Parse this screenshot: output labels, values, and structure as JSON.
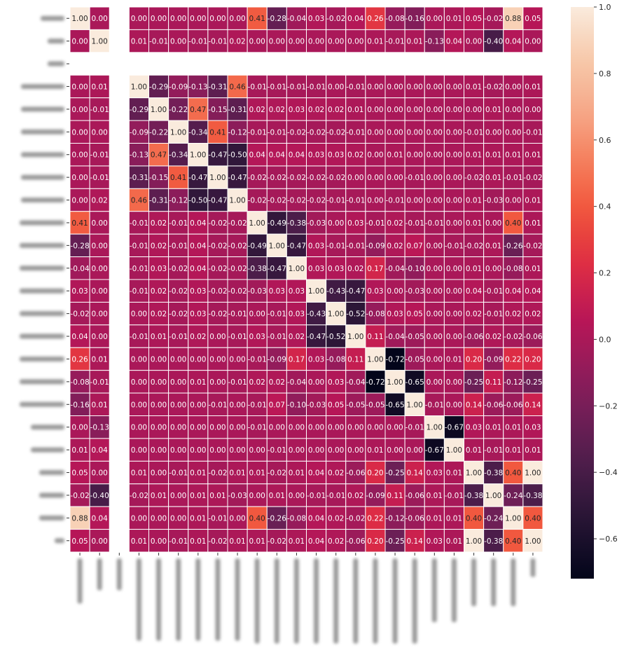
{
  "chart_data": {
    "type": "heatmap",
    "title": "",
    "row_labels_visible": false,
    "col_labels_visible": false,
    "n": 24,
    "value_range": [
      -0.72,
      1.0
    ],
    "colormap": "rocket",
    "colormap_stops": [
      "#03051a",
      "#221331",
      "#451c47",
      "#6b1f56",
      "#921c5b",
      "#b91657",
      "#dd2c45",
      "#f0513a",
      "#f57d5a",
      "#f6a98a",
      "#f7c9aa",
      "#faebdd"
    ],
    "colorbar_ticks": [
      "1.0",
      "0.8",
      "0.6",
      "0.4",
      "0.2",
      "0.0",
      "−0.2",
      "−0.4",
      "−0.6"
    ],
    "colorbar_tick_values": [
      1.0,
      0.8,
      0.6,
      0.4,
      0.2,
      0.0,
      -0.2,
      -0.4,
      -0.6
    ],
    "grid_line_color": "#ffffff",
    "values": [
      [
        1.0,
        -0.0,
        null,
        -0.0,
        -0.0,
        -0.0,
        0.0,
        0.0,
        -0.0,
        0.41,
        -0.28,
        -0.04,
        0.03,
        -0.02,
        0.04,
        0.26,
        -0.08,
        -0.16,
        0.0,
        0.01,
        0.05,
        -0.02,
        0.88,
        0.05
      ],
      [
        -0.0,
        1.0,
        null,
        0.01,
        -0.01,
        0.0,
        -0.01,
        -0.01,
        0.02,
        -0.0,
        0.0,
        0.0,
        -0.0,
        0.0,
        0.0,
        0.01,
        -0.01,
        0.01,
        -0.13,
        0.04,
        -0.0,
        -0.4,
        0.04,
        -0.0
      ],
      [
        null,
        null,
        null,
        null,
        null,
        null,
        null,
        null,
        null,
        null,
        null,
        null,
        null,
        null,
        null,
        null,
        null,
        null,
        null,
        null,
        null,
        null,
        null,
        null
      ],
      [
        -0.0,
        0.01,
        null,
        1.0,
        -0.29,
        -0.09,
        -0.13,
        -0.31,
        0.46,
        -0.01,
        -0.01,
        -0.01,
        -0.01,
        -0.0,
        -0.01,
        -0.0,
        -0.0,
        -0.0,
        0.0,
        0.0,
        0.01,
        -0.02,
        0.0,
        0.01
      ],
      [
        -0.0,
        -0.01,
        null,
        -0.29,
        1.0,
        -0.22,
        0.47,
        -0.15,
        -0.31,
        0.02,
        0.02,
        0.03,
        0.02,
        0.02,
        0.01,
        0.0,
        0.0,
        0.0,
        0.0,
        -0.0,
        -0.0,
        0.01,
        -0.0,
        -0.0
      ],
      [
        -0.0,
        0.0,
        null,
        -0.09,
        -0.22,
        1.0,
        -0.34,
        0.41,
        -0.12,
        -0.01,
        -0.01,
        -0.02,
        -0.02,
        -0.02,
        -0.01,
        -0.0,
        -0.0,
        -0.0,
        -0.0,
        -0.0,
        -0.01,
        0.0,
        -0.0,
        -0.01
      ],
      [
        0.0,
        -0.01,
        null,
        -0.13,
        0.47,
        -0.34,
        1.0,
        -0.47,
        -0.5,
        0.04,
        0.04,
        0.04,
        0.03,
        0.03,
        0.02,
        -0.0,
        0.01,
        0.0,
        0.0,
        -0.0,
        0.01,
        0.01,
        0.01,
        0.01
      ],
      [
        0.0,
        -0.01,
        null,
        -0.31,
        -0.15,
        0.41,
        -0.47,
        1.0,
        -0.47,
        -0.02,
        -0.02,
        -0.02,
        -0.02,
        -0.02,
        -0.0,
        -0.0,
        -0.0,
        -0.01,
        0.0,
        -0.0,
        -0.02,
        0.01,
        -0.01,
        -0.02
      ],
      [
        -0.0,
        0.02,
        null,
        0.46,
        -0.31,
        -0.12,
        -0.5,
        -0.47,
        1.0,
        -0.02,
        -0.02,
        -0.02,
        -0.02,
        -0.01,
        -0.01,
        0.0,
        -0.01,
        0.0,
        0.0,
        0.0,
        0.01,
        -0.03,
        0.0,
        0.01
      ],
      [
        0.41,
        -0.0,
        null,
        -0.01,
        0.02,
        -0.01,
        0.04,
        -0.02,
        -0.02,
        1.0,
        -0.49,
        -0.38,
        -0.03,
        0.0,
        0.03,
        -0.01,
        0.02,
        -0.01,
        -0.01,
        -0.0,
        0.01,
        -0.0,
        0.4,
        0.01
      ],
      [
        -0.28,
        0.0,
        null,
        -0.01,
        0.02,
        -0.01,
        0.04,
        -0.02,
        -0.02,
        -0.49,
        1.0,
        -0.47,
        0.03,
        -0.01,
        -0.01,
        -0.09,
        0.02,
        0.07,
        -0.0,
        -0.01,
        -0.02,
        0.01,
        -0.26,
        -0.02
      ],
      [
        -0.04,
        0.0,
        null,
        -0.01,
        0.03,
        -0.02,
        0.04,
        -0.02,
        -0.02,
        -0.38,
        -0.47,
        1.0,
        0.03,
        0.03,
        0.02,
        0.17,
        -0.04,
        -0.1,
        -0.0,
        -0.0,
        0.01,
        -0.0,
        -0.08,
        0.01
      ],
      [
        0.03,
        -0.0,
        null,
        -0.01,
        0.02,
        -0.02,
        0.03,
        -0.02,
        -0.02,
        -0.03,
        0.03,
        0.03,
        1.0,
        -0.43,
        -0.47,
        0.03,
        0.0,
        -0.03,
        0.0,
        -0.0,
        0.04,
        -0.01,
        0.04,
        0.04
      ],
      [
        -0.02,
        0.0,
        null,
        -0.0,
        0.02,
        -0.02,
        0.03,
        -0.02,
        -0.01,
        0.0,
        -0.01,
        0.03,
        -0.43,
        1.0,
        -0.52,
        -0.08,
        0.03,
        0.05,
        -0.0,
        -0.0,
        0.02,
        -0.01,
        0.02,
        0.02
      ],
      [
        0.04,
        0.0,
        null,
        -0.01,
        0.01,
        -0.01,
        0.02,
        -0.0,
        -0.01,
        0.03,
        -0.01,
        0.02,
        -0.47,
        -0.52,
        1.0,
        0.11,
        -0.04,
        -0.05,
        0.0,
        0.0,
        -0.06,
        0.02,
        -0.02,
        -0.06
      ],
      [
        0.26,
        0.01,
        null,
        -0.0,
        0.0,
        -0.0,
        -0.0,
        -0.0,
        0.0,
        -0.01,
        -0.09,
        0.17,
        0.03,
        -0.08,
        0.11,
        1.0,
        -0.72,
        -0.05,
        0.0,
        0.01,
        0.2,
        -0.09,
        0.22,
        0.2
      ],
      [
        -0.08,
        -0.01,
        null,
        -0.0,
        0.0,
        -0.0,
        0.01,
        -0.0,
        -0.01,
        0.02,
        0.02,
        -0.04,
        0.0,
        0.03,
        -0.04,
        -0.72,
        1.0,
        -0.65,
        0.0,
        -0.0,
        -0.25,
        0.11,
        -0.12,
        -0.25
      ],
      [
        -0.16,
        0.01,
        null,
        -0.0,
        0.0,
        -0.0,
        0.0,
        -0.01,
        0.0,
        -0.01,
        0.07,
        -0.1,
        -0.03,
        0.05,
        -0.05,
        -0.05,
        -0.65,
        1.0,
        -0.01,
        0.0,
        0.14,
        -0.06,
        -0.06,
        0.14
      ],
      [
        0.0,
        -0.13,
        null,
        0.0,
        0.0,
        -0.0,
        0.0,
        0.0,
        0.0,
        -0.01,
        -0.0,
        -0.0,
        0.0,
        -0.0,
        0.0,
        0.0,
        0.0,
        -0.01,
        1.0,
        -0.67,
        0.03,
        0.01,
        0.01,
        0.03
      ],
      [
        0.01,
        0.04,
        null,
        0.0,
        -0.0,
        -0.0,
        -0.0,
        -0.0,
        0.0,
        -0.0,
        -0.01,
        -0.0,
        -0.0,
        -0.0,
        0.0,
        0.01,
        -0.0,
        0.0,
        -0.67,
        1.0,
        0.01,
        -0.01,
        0.01,
        0.01
      ],
      [
        0.05,
        -0.0,
        null,
        0.01,
        -0.0,
        -0.01,
        0.01,
        -0.02,
        0.01,
        0.01,
        -0.02,
        0.01,
        0.04,
        0.02,
        -0.06,
        0.2,
        -0.25,
        0.14,
        0.03,
        0.01,
        1.0,
        -0.38,
        0.4,
        1.0
      ],
      [
        -0.02,
        -0.4,
        null,
        -0.02,
        0.01,
        0.0,
        0.01,
        0.01,
        -0.03,
        -0.0,
        0.01,
        -0.0,
        -0.01,
        -0.01,
        0.02,
        -0.09,
        0.11,
        -0.06,
        0.01,
        -0.01,
        -0.38,
        1.0,
        -0.24,
        -0.38
      ],
      [
        0.88,
        0.04,
        null,
        0.0,
        -0.0,
        -0.0,
        0.01,
        -0.01,
        0.0,
        0.4,
        -0.26,
        -0.08,
        0.04,
        0.02,
        -0.02,
        0.22,
        -0.12,
        -0.06,
        0.01,
        0.01,
        0.4,
        -0.24,
        1.0,
        0.4
      ],
      [
        0.05,
        -0.0,
        null,
        0.01,
        -0.0,
        -0.01,
        0.01,
        -0.02,
        0.01,
        0.01,
        -0.02,
        0.01,
        0.04,
        0.02,
        -0.06,
        0.2,
        -0.25,
        0.14,
        0.03,
        0.01,
        1.0,
        -0.38,
        0.4,
        1.0
      ]
    ]
  }
}
